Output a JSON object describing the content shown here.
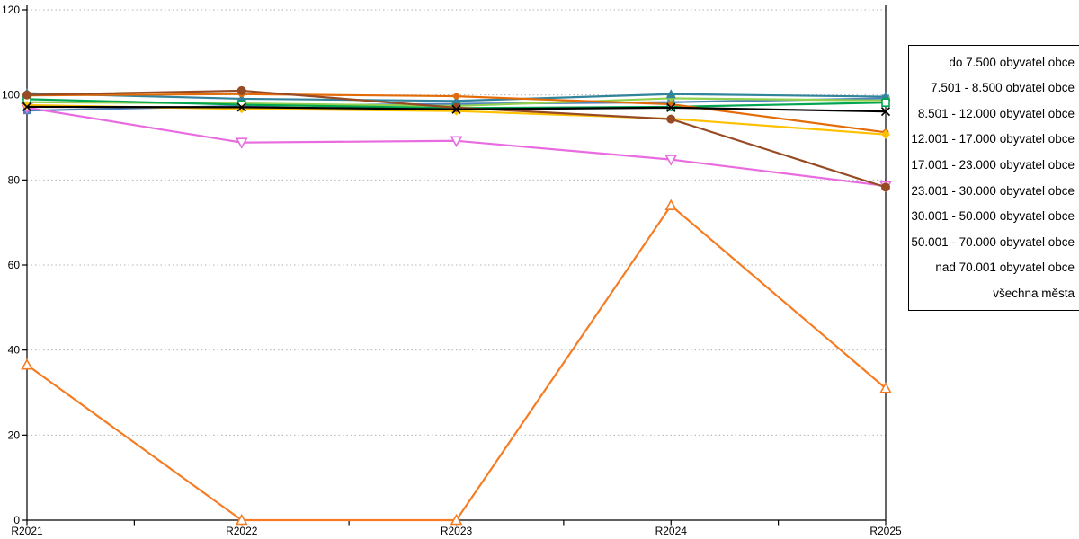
{
  "chart_data": {
    "type": "line",
    "title": "",
    "xlabel": "",
    "ylabel": "",
    "categories": [
      "R2021",
      "R2022",
      "R2023",
      "R2024",
      "R2025"
    ],
    "ylim": [
      0,
      120
    ],
    "yticks": [
      0,
      20,
      40,
      60,
      80,
      100,
      120
    ],
    "grid": "horizontal-dotted",
    "gridline_color": "#b3b3b3",
    "axis_color": "#000000",
    "legend_position": "right-outside",
    "series": [
      {
        "name": "do 7.500 obyvatel obce",
        "color": "#4F81BD",
        "marker": "square-filled",
        "values": [
          96.3,
          97.4,
          97.9,
          98.3,
          99.2
        ]
      },
      {
        "name": "7.501 - 8.500 obvatel obce",
        "color": "#F57C22",
        "marker": "triangle-up-open",
        "values": [
          36.5,
          0,
          0,
          74,
          31
        ]
      },
      {
        "name": "8.501 - 12.000 obyvatel obce",
        "color": "#92D050",
        "marker": "triangle-down-filled",
        "values": [
          98.3,
          98.0,
          97.4,
          99.2,
          98.7
        ]
      },
      {
        "name": "12.001 - 17.000 obyvatel obce",
        "color": "#E96BE0",
        "marker": "triangle-down-open",
        "values": [
          97.0,
          88.8,
          89.2,
          84.8,
          78.6
        ]
      },
      {
        "name": "17.001 - 23.000 obyvatel obce",
        "color": "#31849B",
        "marker": "triangle-up-filled",
        "values": [
          100.4,
          99.1,
          98.6,
          100.2,
          99.6
        ]
      },
      {
        "name": "23.001 - 30.000 obyvatel obce",
        "color": "#00A550",
        "marker": "square-open",
        "values": [
          99.0,
          97.7,
          96.9,
          97.2,
          98.2
        ]
      },
      {
        "name": "30.001 - 50.000 obyvatel obce",
        "color": "#E36C09",
        "marker": "circle-small",
        "values": [
          99.9,
          100.2,
          99.7,
          97.8,
          91.2
        ]
      },
      {
        "name": "50.001 - 70.000 obyvatel obce",
        "color": "#FFC000",
        "marker": "diamond-filled",
        "values": [
          97.6,
          96.7,
          96.2,
          94.4,
          90.7
        ]
      },
      {
        "name": "nad 70.001 obyvatel obce",
        "color": "#964B24",
        "marker": "circle-filled",
        "values": [
          100.0,
          101.0,
          97.0,
          94.3,
          78.3
        ]
      },
      {
        "name": "všechna města",
        "color": "#000000",
        "marker": "x",
        "values": [
          97.2,
          97.1,
          96.6,
          97.0,
          96.1
        ]
      }
    ]
  }
}
